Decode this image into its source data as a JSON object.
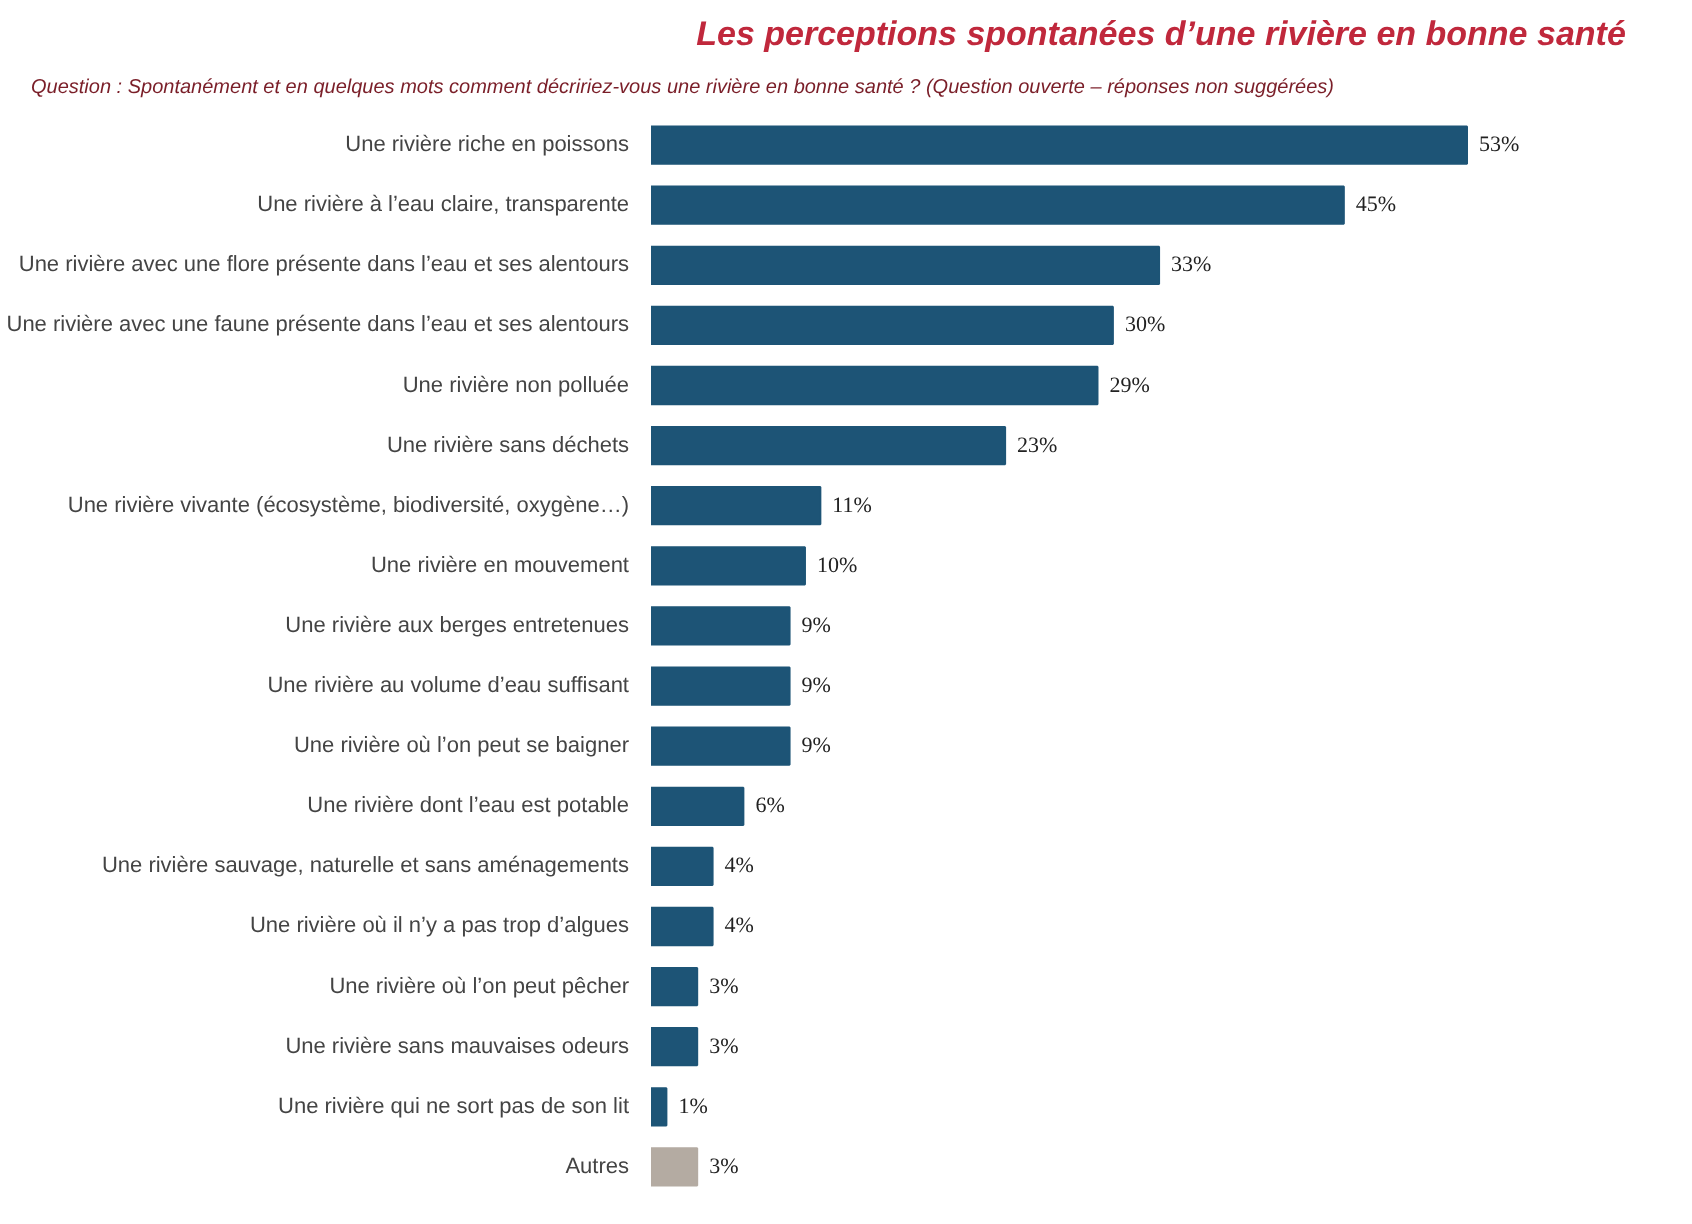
{
  "chart_data": {
    "type": "bar",
    "orientation": "horizontal",
    "title": "Les perceptions spontanées d’une rivière en bonne santé",
    "subtitle": "Question : Spontanément et en quelques mots comment décririez-vous une rivière en bonne santé ? (Question ouverte – réponses non suggérées)",
    "categories": [
      "Une rivière riche en poissons",
      "Une rivière à l’eau claire, transparente",
      "Une rivière avec une flore présente dans l’eau et ses alentours",
      "Une rivière avec une faune présente dans l’eau et ses alentours",
      "Une rivière non polluée",
      "Une rivière sans déchets",
      "Une rivière vivante (écosystème, biodiversité, oxygène…)",
      "Une rivière en mouvement",
      "Une rivière aux berges entretenues",
      "Une rivière au volume d’eau suffisant",
      "Une rivière où l’on peut se baigner",
      "Une rivière dont l’eau est potable",
      "Une rivière sauvage, naturelle et sans aménagements",
      "Une rivière où il n’y a pas trop d’algues",
      "Une rivière où l’on peut pêcher",
      "Une rivière sans mauvaises odeurs",
      "Une rivière qui ne sort pas de son lit",
      "Autres"
    ],
    "values": [
      53,
      45,
      33,
      30,
      29,
      23,
      11,
      10,
      9,
      9,
      9,
      6,
      4,
      4,
      3,
      3,
      1,
      3
    ],
    "colors": [
      "#1d5476",
      "#1d5476",
      "#1d5476",
      "#1d5476",
      "#1d5476",
      "#1d5476",
      "#1d5476",
      "#1d5476",
      "#1d5476",
      "#1d5476",
      "#1d5476",
      "#1d5476",
      "#1d5476",
      "#1d5476",
      "#1d5476",
      "#1d5476",
      "#1d5476",
      "#b4aba2"
    ],
    "value_labels": [
      "53%",
      "45%",
      "33%",
      "30%",
      "29%",
      "23%",
      "11%",
      "10%",
      "9%",
      "9%",
      "9%",
      "6%",
      "4%",
      "4%",
      "3%",
      "3%",
      "1%",
      "3%"
    ],
    "tick_labels": "y",
    "grid": false
  }
}
